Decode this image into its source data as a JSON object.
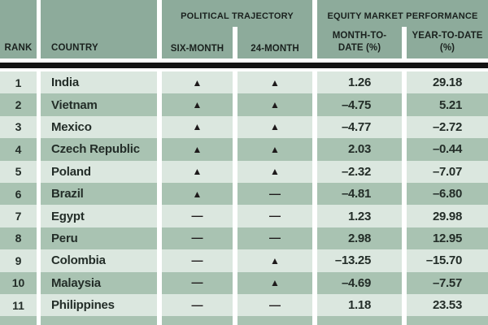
{
  "chart_data": {
    "type": "table",
    "column_groups": [
      {
        "label": "POLITICAL TRAJECTORY",
        "columns": [
          "SIX-MONTH",
          "24-MONTH"
        ]
      },
      {
        "label": "EQUITY MARKET PERFORMANCE",
        "columns": [
          "MONTH-TO-DATE (%)",
          "YEAR-TO-DATE (%)"
        ]
      }
    ],
    "columns": [
      "RANK",
      "COUNTRY",
      "SIX-MONTH",
      "24-MONTH",
      "MONTH-TO-DATE (%)",
      "YEAR-TO-DATE (%)"
    ],
    "rows": [
      [
        1,
        "India",
        "up",
        "up",
        1.26,
        29.18
      ],
      [
        2,
        "Vietnam",
        "up",
        "up",
        -4.75,
        5.21
      ],
      [
        3,
        "Mexico",
        "up",
        "up",
        -4.77,
        -2.72
      ],
      [
        4,
        "Czech Republic",
        "up",
        "up",
        2.03,
        -0.44
      ],
      [
        5,
        "Poland",
        "up",
        "up",
        -2.32,
        -7.07
      ],
      [
        6,
        "Brazil",
        "up",
        "flat",
        -4.81,
        -6.8
      ],
      [
        7,
        "Egypt",
        "flat",
        "flat",
        1.23,
        29.98
      ],
      [
        8,
        "Peru",
        "flat",
        "flat",
        2.98,
        12.95
      ],
      [
        9,
        "Colombia",
        "flat",
        "up",
        -13.25,
        -15.7
      ],
      [
        10,
        "Malaysia",
        "flat",
        "up",
        -4.69,
        -7.57
      ],
      [
        11,
        "Philippines",
        "flat",
        "flat",
        1.18,
        23.53
      ]
    ]
  },
  "header": {
    "rank": "RANK",
    "country": "COUNTRY",
    "political_group": "POLITICAL TRAJECTORY",
    "six_month": "SIX-MONTH",
    "month_24": "24-MONTH",
    "equity_group": "EQUITY MARKET PERFORMANCE",
    "month_to_date_lines": [
      "MONTH-TO-",
      "DATE (%)"
    ],
    "year_to_date_lines": [
      "YEAR-TO-DATE",
      "(%)"
    ]
  },
  "rows": [
    {
      "rank": "1",
      "country": "India",
      "six": "up",
      "m24": "up",
      "mtd": "1.26",
      "ytd": "29.18"
    },
    {
      "rank": "2",
      "country": "Vietnam",
      "six": "up",
      "m24": "up",
      "mtd": "–4.75",
      "ytd": "5.21"
    },
    {
      "rank": "3",
      "country": "Mexico",
      "six": "up",
      "m24": "up",
      "mtd": "–4.77",
      "ytd": "–2.72"
    },
    {
      "rank": "4",
      "country": "Czech Republic",
      "six": "up",
      "m24": "up",
      "mtd": "2.03",
      "ytd": "–0.44"
    },
    {
      "rank": "5",
      "country": "Poland",
      "six": "up",
      "m24": "up",
      "mtd": "–2.32",
      "ytd": "–7.07"
    },
    {
      "rank": "6",
      "country": "Brazil",
      "six": "up",
      "m24": "flat",
      "mtd": "–4.81",
      "ytd": "–6.80"
    },
    {
      "rank": "7",
      "country": "Egypt",
      "six": "flat",
      "m24": "flat",
      "mtd": "1.23",
      "ytd": "29.98"
    },
    {
      "rank": "8",
      "country": "Peru",
      "six": "flat",
      "m24": "flat",
      "mtd": "2.98",
      "ytd": "12.95"
    },
    {
      "rank": "9",
      "country": "Colombia",
      "six": "flat",
      "m24": "up",
      "mtd": "–13.25",
      "ytd": "–15.70"
    },
    {
      "rank": "10",
      "country": "Malaysia",
      "six": "flat",
      "m24": "up",
      "mtd": "–4.69",
      "ytd": "–7.57"
    },
    {
      "rank": "11",
      "country": "Philippines",
      "six": "flat",
      "m24": "flat",
      "mtd": "1.18",
      "ytd": "23.53"
    }
  ],
  "symbols": {
    "up": "▲",
    "flat": "—"
  },
  "colors": {
    "header_green": "#8dab9b",
    "row_light": "#dbe7df",
    "row_dark": "#a9c3b2",
    "divider_black": "#141414",
    "text_dark": "#232d28"
  }
}
